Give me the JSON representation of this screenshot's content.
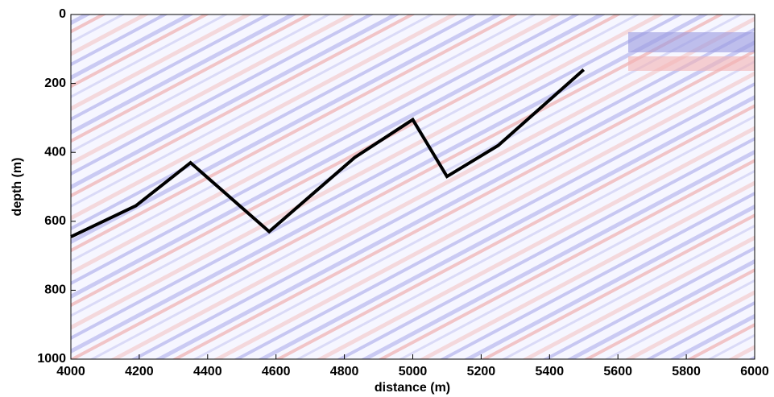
{
  "chart_data": {
    "type": "line",
    "xlabel": "distance (m)",
    "ylabel": "depth (m)",
    "series": [
      {
        "color": "#000000",
        "x": [
          4000,
          4190,
          4350,
          4580,
          4830,
          5000,
          5100,
          5250,
          5500
        ],
        "values": [
          645,
          555,
          430,
          630,
          415,
          305,
          470,
          380,
          160
        ]
      }
    ],
    "xlim": [
      4000,
      6000
    ],
    "xticks": [
      4000,
      4200,
      4400,
      4600,
      4800,
      5000,
      5200,
      5400,
      5600,
      5800,
      6000
    ],
    "ylim": [
      1000,
      0
    ],
    "yticks": [
      0,
      200,
      400,
      600,
      800,
      1000
    ]
  }
}
